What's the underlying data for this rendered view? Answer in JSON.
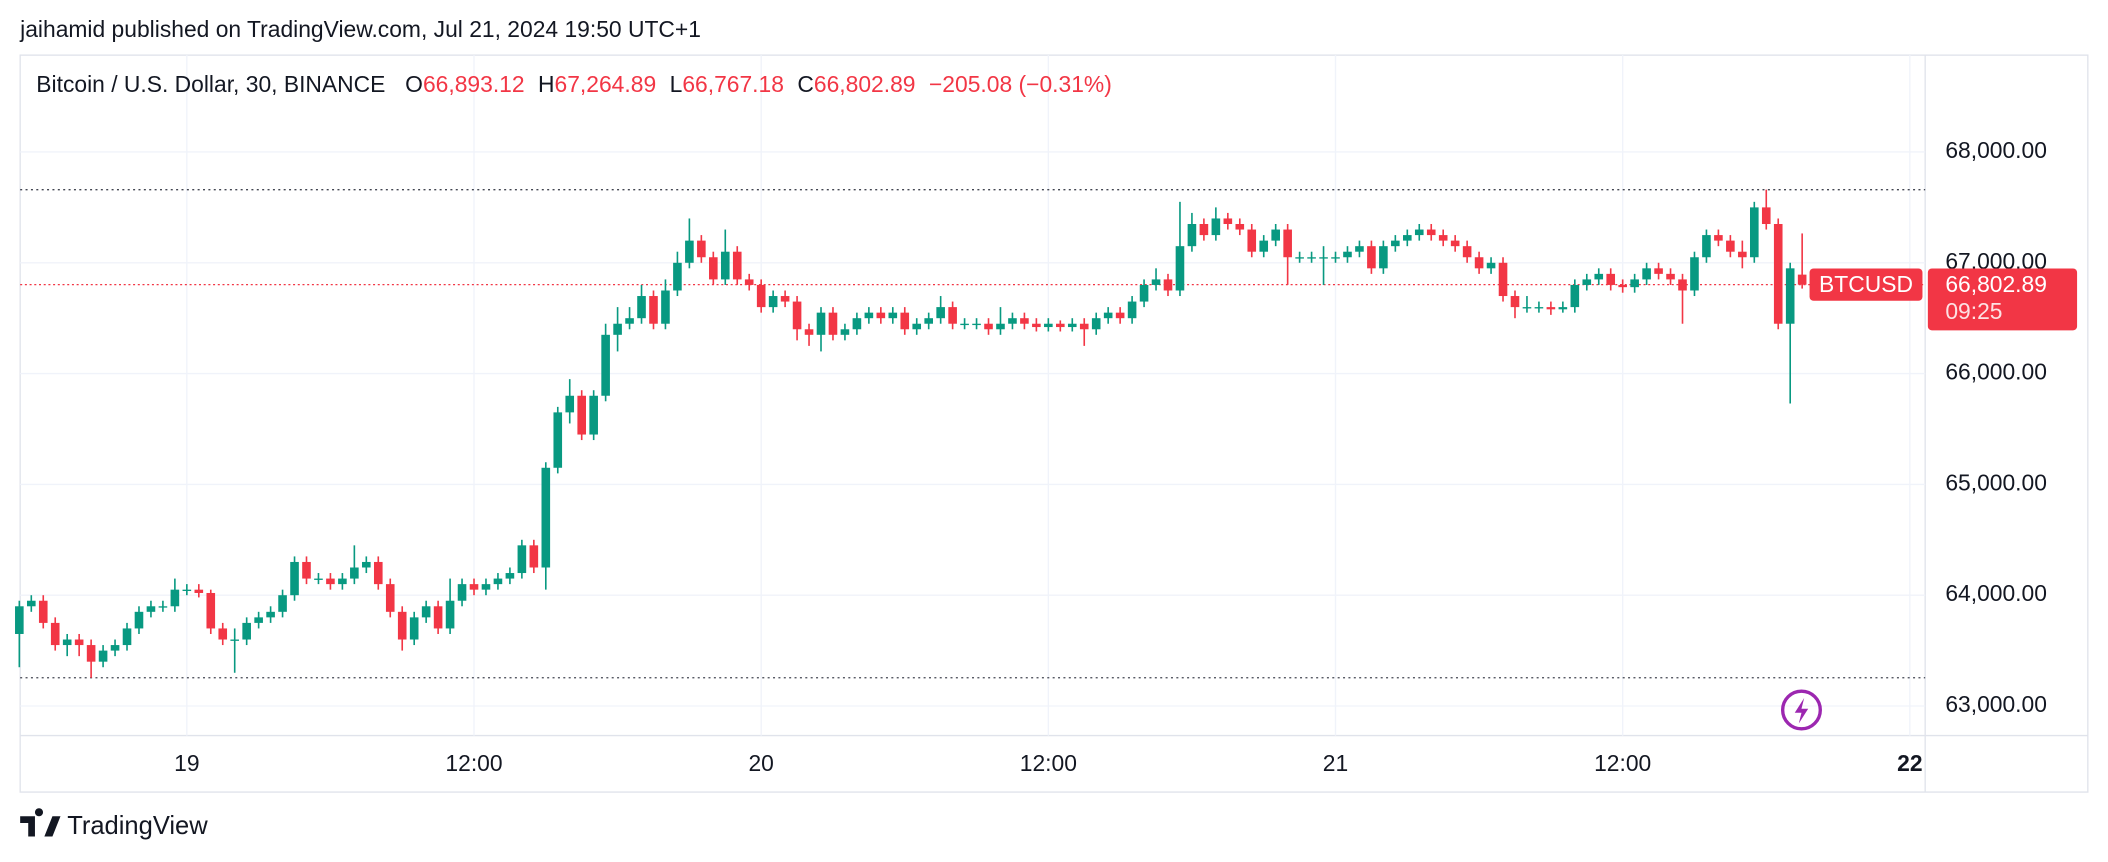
{
  "chart_data": {
    "type": "candlestick",
    "caption": "jaihamid published on TradingView.com, Jul 21, 2024 19:50 UTC+1",
    "title": "Bitcoin / U.S. Dollar, 30, BINANCE",
    "ohlc_letters": [
      "O",
      "H",
      "L",
      "C"
    ],
    "ohlc_labels": [
      "66,893.12",
      "67,264.89",
      "66,767.18",
      "66,802.89"
    ],
    "change_label": "−205.08 (−0.31%)",
    "symbol": "BTCUSD",
    "countdown": "09:25",
    "brand": "TradingView",
    "up_color": "#089981",
    "down_color": "#f23645",
    "ohlc": [
      [
        63650,
        63950,
        63350,
        63900
      ],
      [
        63900,
        64000,
        63850,
        63950
      ],
      [
        63950,
        64000,
        63700,
        63750
      ],
      [
        63750,
        63800,
        63500,
        63550
      ],
      [
        63550,
        63650,
        63450,
        63600
      ],
      [
        63600,
        63650,
        63450,
        63550
      ],
      [
        63550,
        63600,
        63255,
        63400
      ],
      [
        63400,
        63550,
        63350,
        63500
      ],
      [
        63500,
        63600,
        63450,
        63550
      ],
      [
        63550,
        63750,
        63500,
        63700
      ],
      [
        63700,
        63900,
        63650,
        63850
      ],
      [
        63850,
        63950,
        63800,
        63900
      ],
      [
        63900,
        63950,
        63850,
        63900
      ],
      [
        63900,
        64150,
        63850,
        64050
      ],
      [
        64050,
        64100,
        64000,
        64050
      ],
      [
        64050,
        64100,
        63980,
        64020
      ],
      [
        64020,
        64050,
        63650,
        63700
      ],
      [
        63700,
        63750,
        63550,
        63600
      ],
      [
        63600,
        63700,
        63300,
        63600
      ],
      [
        63600,
        63800,
        63550,
        63750
      ],
      [
        63750,
        63850,
        63700,
        63800
      ],
      [
        63800,
        63900,
        63750,
        63850
      ],
      [
        63850,
        64050,
        63800,
        64000
      ],
      [
        64000,
        64350,
        63950,
        64300
      ],
      [
        64300,
        64350,
        64100,
        64150
      ],
      [
        64150,
        64200,
        64100,
        64150
      ],
      [
        64150,
        64200,
        64050,
        64100
      ],
      [
        64100,
        64200,
        64050,
        64150
      ],
      [
        64150,
        64450,
        64100,
        64250
      ],
      [
        64250,
        64350,
        64200,
        64300
      ],
      [
        64300,
        64350,
        64050,
        64100
      ],
      [
        64100,
        64150,
        63800,
        63850
      ],
      [
        63850,
        63900,
        63500,
        63600
      ],
      [
        63600,
        63850,
        63550,
        63800
      ],
      [
        63800,
        63950,
        63750,
        63900
      ],
      [
        63900,
        63950,
        63650,
        63700
      ],
      [
        63700,
        64150,
        63650,
        63950
      ],
      [
        63950,
        64150,
        63900,
        64100
      ],
      [
        64100,
        64150,
        64000,
        64050
      ],
      [
        64050,
        64150,
        64000,
        64100
      ],
      [
        64100,
        64200,
        64050,
        64150
      ],
      [
        64150,
        64250,
        64100,
        64200
      ],
      [
        64200,
        64500,
        64150,
        64450
      ],
      [
        64450,
        64500,
        64200,
        64250
      ],
      [
        64250,
        65200,
        64050,
        65150
      ],
      [
        65150,
        65700,
        65100,
        65650
      ],
      [
        65650,
        65950,
        65550,
        65800
      ],
      [
        65800,
        65850,
        65400,
        65450
      ],
      [
        65450,
        65850,
        65400,
        65800
      ],
      [
        65800,
        66450,
        65750,
        66350
      ],
      [
        66350,
        66600,
        66200,
        66450
      ],
      [
        66450,
        66600,
        66400,
        66500
      ],
      [
        66500,
        66800,
        66450,
        66700
      ],
      [
        66700,
        66750,
        66400,
        66450
      ],
      [
        66450,
        66850,
        66400,
        66750
      ],
      [
        66750,
        67100,
        66700,
        67000
      ],
      [
        67000,
        67400,
        66950,
        67200
      ],
      [
        67200,
        67250,
        67000,
        67050
      ],
      [
        67050,
        67100,
        66800,
        66850
      ],
      [
        66850,
        67300,
        66800,
        67100
      ],
      [
        67100,
        67150,
        66800,
        66850
      ],
      [
        66850,
        66900,
        66750,
        66800
      ],
      [
        66800,
        66850,
        66550,
        66600
      ],
      [
        66600,
        66750,
        66550,
        66700
      ],
      [
        66700,
        66750,
        66600,
        66650
      ],
      [
        66650,
        66700,
        66300,
        66400
      ],
      [
        66400,
        66450,
        66250,
        66350
      ],
      [
        66350,
        66600,
        66200,
        66550
      ],
      [
        66550,
        66600,
        66300,
        66350
      ],
      [
        66350,
        66450,
        66300,
        66400
      ],
      [
        66400,
        66550,
        66350,
        66500
      ],
      [
        66500,
        66600,
        66450,
        66550
      ],
      [
        66550,
        66600,
        66450,
        66500
      ],
      [
        66500,
        66600,
        66450,
        66550
      ],
      [
        66550,
        66600,
        66350,
        66400
      ],
      [
        66400,
        66500,
        66350,
        66450
      ],
      [
        66450,
        66550,
        66400,
        66500
      ],
      [
        66500,
        66700,
        66450,
        66600
      ],
      [
        66600,
        66650,
        66400,
        66450
      ],
      [
        66450,
        66500,
        66400,
        66450
      ],
      [
        66450,
        66500,
        66400,
        66450
      ],
      [
        66450,
        66500,
        66350,
        66400
      ],
      [
        66400,
        66600,
        66350,
        66450
      ],
      [
        66450,
        66550,
        66400,
        66500
      ],
      [
        66500,
        66550,
        66400,
        66450
      ],
      [
        66450,
        66500,
        66380,
        66420
      ],
      [
        66420,
        66500,
        66380,
        66450
      ],
      [
        66450,
        66480,
        66380,
        66420
      ],
      [
        66420,
        66500,
        66380,
        66450
      ],
      [
        66450,
        66500,
        66250,
        66400
      ],
      [
        66400,
        66550,
        66350,
        66500
      ],
      [
        66500,
        66600,
        66450,
        66550
      ],
      [
        66550,
        66600,
        66450,
        66500
      ],
      [
        66500,
        66700,
        66450,
        66650
      ],
      [
        66650,
        66850,
        66600,
        66800
      ],
      [
        66800,
        66950,
        66750,
        66850
      ],
      [
        66850,
        66900,
        66700,
        66750
      ],
      [
        66750,
        67550,
        66700,
        67150
      ],
      [
        67150,
        67450,
        67100,
        67350
      ],
      [
        67350,
        67400,
        67200,
        67250
      ],
      [
        67250,
        67500,
        67200,
        67400
      ],
      [
        67400,
        67450,
        67300,
        67350
      ],
      [
        67350,
        67400,
        67250,
        67300
      ],
      [
        67300,
        67350,
        67050,
        67100
      ],
      [
        67100,
        67250,
        67050,
        67200
      ],
      [
        67200,
        67350,
        67150,
        67300
      ],
      [
        67300,
        67350,
        66800,
        67050
      ],
      [
        67050,
        67100,
        67000,
        67050
      ],
      [
        67050,
        67100,
        67000,
        67050
      ],
      [
        67050,
        67150,
        66800,
        67050
      ],
      [
        67050,
        67100,
        67000,
        67050
      ],
      [
        67050,
        67150,
        67000,
        67100
      ],
      [
        67100,
        67200,
        67050,
        67150
      ],
      [
        67150,
        67200,
        66900,
        66950
      ],
      [
        66950,
        67200,
        66900,
        67150
      ],
      [
        67150,
        67250,
        67100,
        67200
      ],
      [
        67200,
        67300,
        67150,
        67250
      ],
      [
        67250,
        67350,
        67200,
        67300
      ],
      [
        67300,
        67350,
        67200,
        67250
      ],
      [
        67250,
        67300,
        67150,
        67200
      ],
      [
        67200,
        67250,
        67100,
        67150
      ],
      [
        67150,
        67200,
        67000,
        67050
      ],
      [
        67050,
        67100,
        66900,
        66950
      ],
      [
        66950,
        67050,
        66900,
        67000
      ],
      [
        67000,
        67050,
        66650,
        66700
      ],
      [
        66700,
        66750,
        66500,
        66600
      ],
      [
        66600,
        66700,
        66550,
        66600
      ],
      [
        66600,
        66650,
        66550,
        66600
      ],
      [
        66600,
        66650,
        66530,
        66580
      ],
      [
        66580,
        66650,
        66550,
        66600
      ],
      [
        66600,
        66850,
        66550,
        66800
      ],
      [
        66800,
        66900,
        66750,
        66850
      ],
      [
        66850,
        66950,
        66800,
        66900
      ],
      [
        66900,
        66950,
        66750,
        66800
      ],
      [
        66800,
        66850,
        66730,
        66780
      ],
      [
        66780,
        66900,
        66730,
        66850
      ],
      [
        66850,
        67000,
        66800,
        66950
      ],
      [
        66950,
        67000,
        66850,
        66900
      ],
      [
        66900,
        66950,
        66800,
        66850
      ],
      [
        66850,
        66900,
        66450,
        66750
      ],
      [
        66750,
        67100,
        66700,
        67050
      ],
      [
        67050,
        67300,
        67000,
        67250
      ],
      [
        67250,
        67300,
        67150,
        67200
      ],
      [
        67200,
        67250,
        67050,
        67100
      ],
      [
        67100,
        67200,
        66950,
        67050
      ],
      [
        67050,
        67550,
        67000,
        67500
      ],
      [
        67500,
        67660,
        67300,
        67350
      ],
      [
        67350,
        67400,
        66400,
        66450
      ],
      [
        66450,
        67000,
        65730,
        66950
      ],
      [
        66893.12,
        67264.89,
        66767.18,
        66802.89
      ]
    ],
    "xlim": [
      0.07,
      159.28
    ],
    "xticks": [
      {
        "value": 14,
        "label": "19"
      },
      {
        "value": 38,
        "label": "12:00"
      },
      {
        "value": 62,
        "label": "20"
      },
      {
        "value": 86,
        "label": "12:00"
      },
      {
        "value": 110,
        "label": "21"
      },
      {
        "value": 134,
        "label": "12:00"
      },
      {
        "value": 158,
        "label": "22"
      }
    ],
    "ylim": [
      62733,
      68874
    ],
    "yticks": [
      {
        "value": 63000,
        "label": "63,000.00"
      },
      {
        "value": 64000,
        "label": "64,000.00"
      },
      {
        "value": 65000,
        "label": "65,000.00"
      },
      {
        "value": 66000,
        "label": "66,000.00"
      },
      {
        "value": 67000,
        "label": "67,000.00"
      },
      {
        "value": 68000,
        "label": "68,000.00"
      }
    ],
    "grid": true
  }
}
